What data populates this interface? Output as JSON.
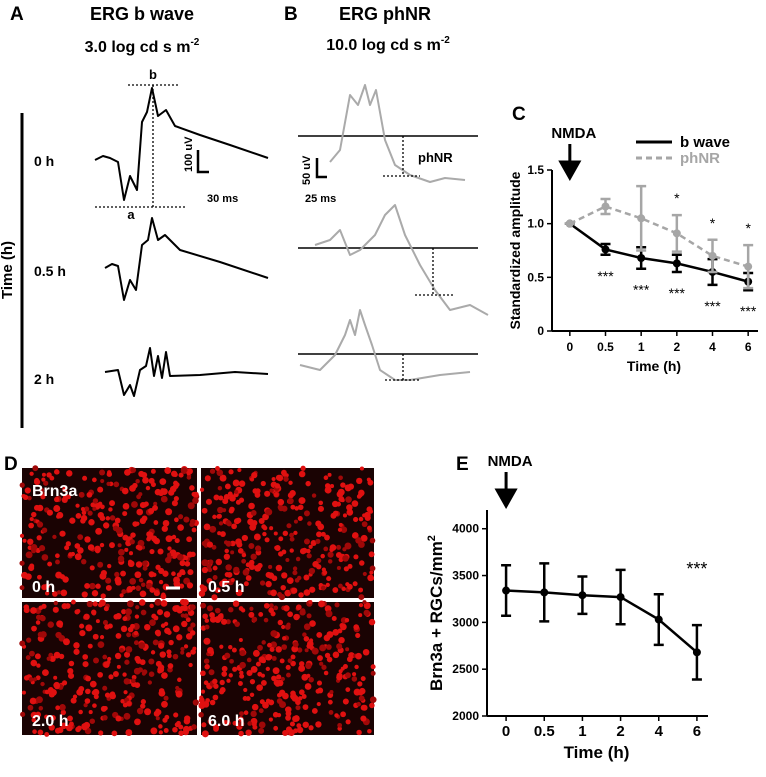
{
  "panels": {
    "a": {
      "letter": "A",
      "title": "ERG b wave",
      "subtitle": "3.0 log cd s m",
      "subtitle_sup": "-2",
      "axis_label": "Time (h)",
      "times": [
        "0 h",
        "0.5 h",
        "2 h"
      ],
      "peak_b": "b",
      "peak_a": "a",
      "scale_y": "100 uV",
      "scale_x": "30 ms"
    },
    "b": {
      "letter": "B",
      "title": "ERG phNR",
      "subtitle": "10.0 log cd s m",
      "subtitle_sup": "-2",
      "marker": "phNR",
      "scale_y": "50 uV",
      "scale_x": "25 ms"
    },
    "c": {
      "letter": "C"
    },
    "d": {
      "letter": "D",
      "stain": "Brn3a",
      "times": [
        "0 h",
        "0.5 h",
        "2.0 h",
        "6.0 h"
      ]
    },
    "e": {
      "letter": "E"
    }
  },
  "chart_data": [
    {
      "type": "line",
      "annotation": "NMDA",
      "xlabel": "Time (h)",
      "ylabel": "Standardized amplitude",
      "categories": [
        "0",
        "0.5",
        "1",
        "2",
        "4",
        "6"
      ],
      "ylim": [
        0,
        1.5
      ],
      "yticks": [
        0,
        0.5,
        {
          "value": 1,
          "label": "1.0"
        },
        1.5
      ],
      "legend": "top-right",
      "series": [
        {
          "name": "b wave",
          "color": "#000000",
          "values": [
            1.0,
            0.76,
            0.68,
            0.63,
            0.55,
            0.46
          ],
          "errors": [
            0,
            0.05,
            0.1,
            0.08,
            0.12,
            0.08
          ],
          "stars": [
            null,
            "***",
            "***",
            "***",
            "***",
            "***"
          ]
        },
        {
          "name": "phNR",
          "color": "#a6a6a6",
          "values": [
            1.0,
            1.16,
            1.05,
            0.91,
            0.7,
            0.6
          ],
          "errors": [
            0,
            0.07,
            0.3,
            0.17,
            0.15,
            0.2
          ],
          "stars": [
            null,
            null,
            null,
            "*",
            "*",
            "*"
          ]
        }
      ]
    },
    {
      "type": "line",
      "annotation": "NMDA",
      "xlabel": "Time (h)",
      "ylabel": "Brn3a + RGCs/mm",
      "ylabel_sup": "2",
      "categories": [
        "0",
        "0.5",
        "1",
        "2",
        "4",
        "6"
      ],
      "ylim": [
        2000,
        4200
      ],
      "yticks": [
        2000,
        2500,
        3000,
        3500,
        4000
      ],
      "series": [
        {
          "color": "#000000",
          "values": [
            3340,
            3320,
            3290,
            3270,
            3030,
            2680
          ],
          "errors": [
            270,
            310,
            200,
            290,
            270,
            290
          ],
          "stars": [
            null,
            null,
            null,
            null,
            null,
            "***"
          ]
        }
      ]
    }
  ]
}
